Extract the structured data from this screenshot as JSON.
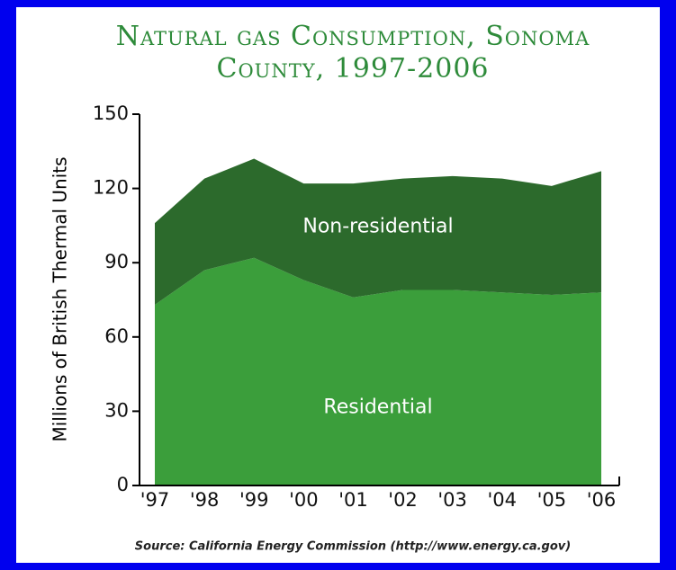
{
  "chart_data": {
    "type": "stacked_area",
    "title": [
      "Natural gas Consumption, Sonoma",
      "County, 1997-2006"
    ],
    "y_label": "Millions of British Thermal Units",
    "source": "Source: California Energy Commission (http://www.energy.ca.gov)",
    "categories": [
      "'97",
      "'98",
      "'99",
      "'00",
      "'01",
      "'02",
      "'03",
      "'04",
      "'05",
      "'06"
    ],
    "series": [
      {
        "name": "Residential",
        "color": "#3b9e3b",
        "values": [
          73,
          87,
          92,
          83,
          76,
          79,
          79,
          78,
          77,
          78
        ]
      },
      {
        "name": "Non-residential",
        "color": "#2c6a2c",
        "values": [
          33,
          37,
          40,
          39,
          46,
          45,
          46,
          46,
          44,
          49
        ]
      }
    ],
    "ylim": [
      0,
      150
    ],
    "yticks": [
      0,
      30,
      60,
      90,
      120,
      150
    ]
  }
}
